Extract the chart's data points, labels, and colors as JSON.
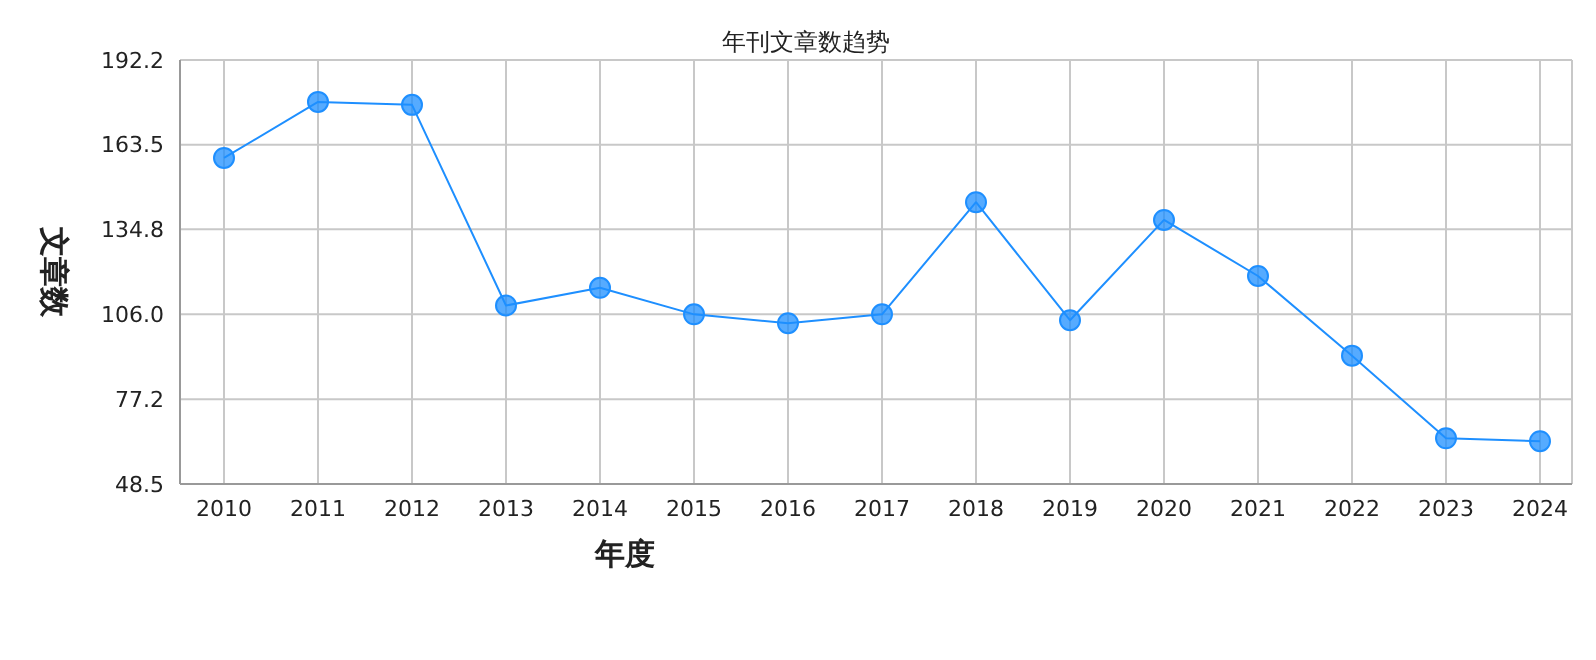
{
  "chart_data": {
    "type": "line",
    "title": "年刊文章数趋势",
    "xlabel": "年度",
    "ylabel": "文章数",
    "categories": [
      "2010",
      "2011",
      "2012",
      "2013",
      "2014",
      "2015",
      "2016",
      "2017",
      "2018",
      "2019",
      "2020",
      "2021",
      "2022",
      "2023",
      "2024"
    ],
    "series": [
      {
        "color": "#1e8fff",
        "values": [
          159,
          178,
          177,
          109,
          115,
          106,
          103,
          106,
          144,
          104,
          138,
          119,
          92,
          64,
          63
        ]
      }
    ],
    "ylim": [
      48.5,
      192.2
    ],
    "yticks": [
      48.5,
      {
        "value": 77.2,
        "label": "77.2"
      },
      {
        "value": 106.0,
        "label": "106.0"
      },
      {
        "value": 134.8,
        "label": "134.8"
      },
      {
        "value": 163.5,
        "label": "163.5"
      },
      192.2
    ],
    "grid": true,
    "marker": "circle",
    "line_style": "solid",
    "legend": false
  }
}
